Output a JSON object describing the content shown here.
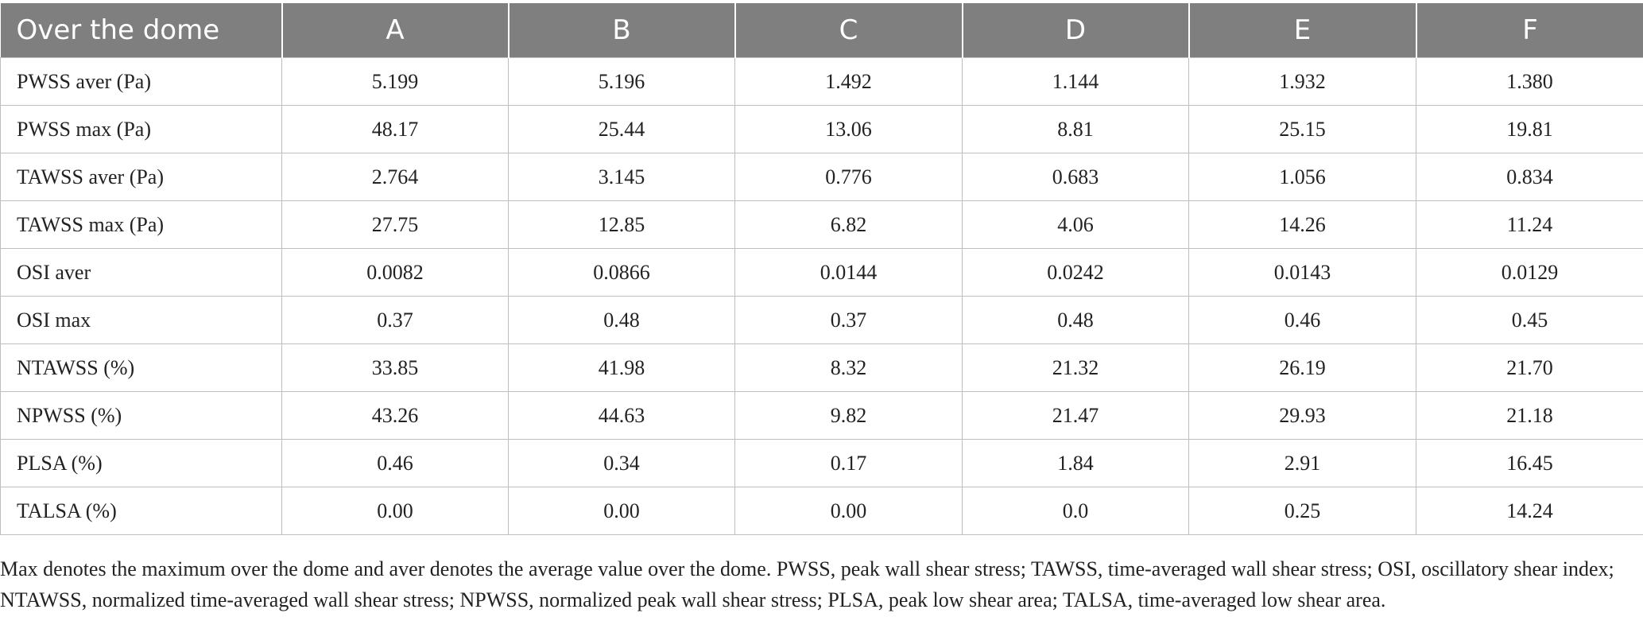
{
  "table": {
    "columns": [
      "Over the dome",
      "A",
      "B",
      "C",
      "D",
      "E",
      "F"
    ],
    "rows": [
      [
        "PWSS aver (Pa)",
        "5.199",
        "5.196",
        "1.492",
        "1.144",
        "1.932",
        "1.380"
      ],
      [
        "PWSS max (Pa)",
        "48.17",
        "25.44",
        "13.06",
        "8.81",
        "25.15",
        "19.81"
      ],
      [
        "TAWSS aver (Pa)",
        "2.764",
        "3.145",
        "0.776",
        "0.683",
        "1.056",
        "0.834"
      ],
      [
        "TAWSS max (Pa)",
        "27.75",
        "12.85",
        "6.82",
        "4.06",
        "14.26",
        "11.24"
      ],
      [
        "OSI aver",
        "0.0082",
        "0.0866",
        "0.0144",
        "0.0242",
        "0.0143",
        "0.0129"
      ],
      [
        "OSI max",
        "0.37",
        "0.48",
        "0.37",
        "0.48",
        "0.46",
        "0.45"
      ],
      [
        "NTAWSS (%)",
        "33.85",
        "41.98",
        "8.32",
        "21.32",
        "26.19",
        "21.70"
      ],
      [
        "NPWSS (%)",
        "43.26",
        "44.63",
        "9.82",
        "21.47",
        "29.93",
        "21.18"
      ],
      [
        "PLSA (%)",
        "0.46",
        "0.34",
        "0.17",
        "1.84",
        "2.91",
        "16.45"
      ],
      [
        "TALSA (%)",
        "0.00",
        "0.00",
        "0.00",
        "0.0",
        "0.25",
        "14.24"
      ]
    ]
  },
  "footnote": "Max denotes the maximum over the dome and aver denotes the average value over the dome. PWSS, peak wall shear stress; TAWSS, time-averaged wall shear stress; OSI, oscillatory shear index; NTAWSS, normalized time-averaged wall shear stress; NPWSS, normalized peak wall shear stress; PLSA, peak low shear area; TALSA, time-averaged low shear area.",
  "colors": {
    "header_bg": "#7f7f7f",
    "header_text": "#ffffff",
    "grid": "#bdbdbd",
    "text": "#222222"
  }
}
